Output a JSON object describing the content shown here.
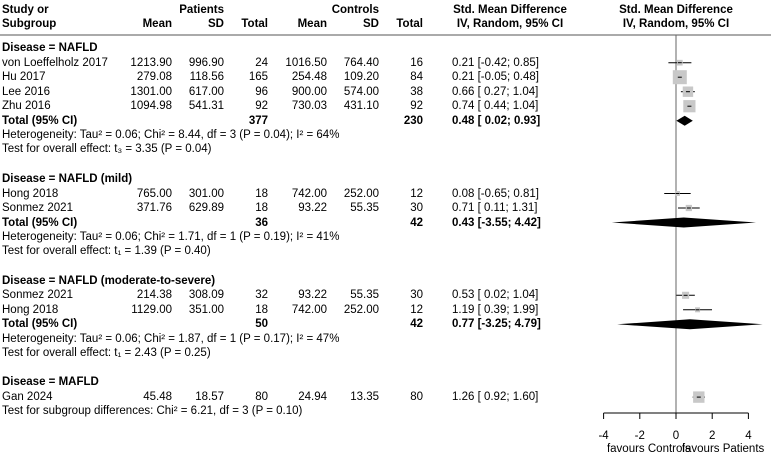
{
  "chart_data": {
    "type": "forest",
    "headers": {
      "study1": "Study or",
      "study2": "Subgroup",
      "patients": "Patients",
      "controls": "Controls",
      "mean": "Mean",
      "sd": "SD",
      "total": "Total",
      "smd1": "Std. Mean Difference",
      "smd2": "IV, Random, 95% CI",
      "plot1": "Std. Mean Difference",
      "plot2": "IV, Random, 95% CI"
    },
    "subgroups": [
      {
        "label": "Disease = NAFLD",
        "studies": [
          {
            "study": "von Loeffelholz 2017",
            "p_mean": "1213.90",
            "p_sd": "996.90",
            "p_total": "24",
            "c_mean": "1016.50",
            "c_sd": "764.40",
            "c_total": "16",
            "ci_text": "0.21 [-0.42; 0.85]",
            "est": 0.21,
            "lo": -0.42,
            "hi": 0.85
          },
          {
            "study": "Hu 2017",
            "p_mean": "279.08",
            "p_sd": "118.56",
            "p_total": "165",
            "c_mean": "254.48",
            "c_sd": "109.20",
            "c_total": "84",
            "ci_text": "0.21 [-0.05; 0.48]",
            "est": 0.21,
            "lo": -0.05,
            "hi": 0.48
          },
          {
            "study": "Lee 2016",
            "p_mean": "1301.00",
            "p_sd": "617.00",
            "p_total": "96",
            "c_mean": "900.00",
            "c_sd": "574.00",
            "c_total": "38",
            "ci_text": "0.66 [ 0.27; 1.04]",
            "est": 0.66,
            "lo": 0.27,
            "hi": 1.04
          },
          {
            "study": "Zhu 2016",
            "p_mean": "1094.98",
            "p_sd": "541.31",
            "p_total": "92",
            "c_mean": "730.03",
            "c_sd": "431.10",
            "c_total": "92",
            "ci_text": "0.74 [ 0.44; 1.04]",
            "est": 0.74,
            "lo": 0.44,
            "hi": 1.04
          }
        ],
        "total": {
          "label": "Total (95% CI)",
          "p_total": "377",
          "c_total": "230",
          "ci_text": "0.48 [ 0.02; 0.93]",
          "est": 0.48,
          "lo": 0.02,
          "hi": 0.93
        },
        "het": "Heterogeneity: Tau² = 0.06; Chi² = 8.44, df = 3 (P = 0.04); I² = 64%",
        "test": "Test for overall effect: t₃ = 3.35 (P = 0.04)"
      },
      {
        "label": "Disease = NAFLD (mild)",
        "studies": [
          {
            "study": "Hong 2018",
            "p_mean": "765.00",
            "p_sd": "301.00",
            "p_total": "18",
            "c_mean": "742.00",
            "c_sd": "252.00",
            "c_total": "12",
            "ci_text": "0.08 [-0.65; 0.81]",
            "est": 0.08,
            "lo": -0.65,
            "hi": 0.81
          },
          {
            "study": "Sonmez 2021",
            "p_mean": "371.76",
            "p_sd": "629.89",
            "p_total": "18",
            "c_mean": "93.22",
            "c_sd": "55.35",
            "c_total": "30",
            "ci_text": "0.71 [ 0.11; 1.31]",
            "est": 0.71,
            "lo": 0.11,
            "hi": 1.31
          }
        ],
        "total": {
          "label": "Total (95% CI)",
          "p_total": "36",
          "c_total": "42",
          "ci_text": "0.43 [-3.55; 4.42]",
          "est": 0.43,
          "lo": -3.55,
          "hi": 4.42
        },
        "het": "Heterogeneity: Tau² = 0.06; Chi² = 1.71, df = 1 (P = 0.19); I² = 41%",
        "test": "Test for overall effect: t₁ = 1.39 (P = 0.40)"
      },
      {
        "label": "Disease = NAFLD (moderate-to-severe)",
        "studies": [
          {
            "study": "Sonmez 2021",
            "p_mean": "214.38",
            "p_sd": "308.09",
            "p_total": "32",
            "c_mean": "93.22",
            "c_sd": "55.35",
            "c_total": "30",
            "ci_text": "0.53 [ 0.02; 1.04]",
            "est": 0.53,
            "lo": 0.02,
            "hi": 1.04
          },
          {
            "study": "Hong 2018",
            "p_mean": "1129.00",
            "p_sd": "351.00",
            "p_total": "18",
            "c_mean": "742.00",
            "c_sd": "252.00",
            "c_total": "12",
            "ci_text": "1.19 [ 0.39; 1.99]",
            "est": 1.19,
            "lo": 0.39,
            "hi": 1.99
          }
        ],
        "total": {
          "label": "Total (95% CI)",
          "p_total": "50",
          "c_total": "42",
          "ci_text": "0.77 [-3.25; 4.79]",
          "est": 0.77,
          "lo": -3.25,
          "hi": 4.79
        },
        "het": "Heterogeneity: Tau² = 0.06; Chi² = 1.87, df = 1 (P = 0.17); I² = 47%",
        "test": "Test for overall effect: t₁ = 2.43 (P = 0.25)"
      },
      {
        "label": "Disease = MAFLD",
        "studies": [
          {
            "study": "Gan 2024",
            "p_mean": "45.48",
            "p_sd": "18.57",
            "p_total": "80",
            "c_mean": "24.94",
            "c_sd": "13.35",
            "c_total": "80",
            "ci_text": "1.26 [ 0.92; 1.60]",
            "est": 1.26,
            "lo": 0.92,
            "hi": 1.6
          }
        ]
      }
    ],
    "subgroup_test": "Test for subgroup differences: Chi² = 6.21, df = 3 (P = 0.10)",
    "xlim": [
      -4,
      4
    ],
    "xticks": [
      "-4",
      "-2",
      "0",
      "2",
      "4"
    ],
    "xlabel_left": "favours Controls",
    "xlabel_right": "favours Patients",
    "colors": {
      "square": "#c8c8c8",
      "line": "#000000",
      "diamond": "#000000"
    }
  }
}
